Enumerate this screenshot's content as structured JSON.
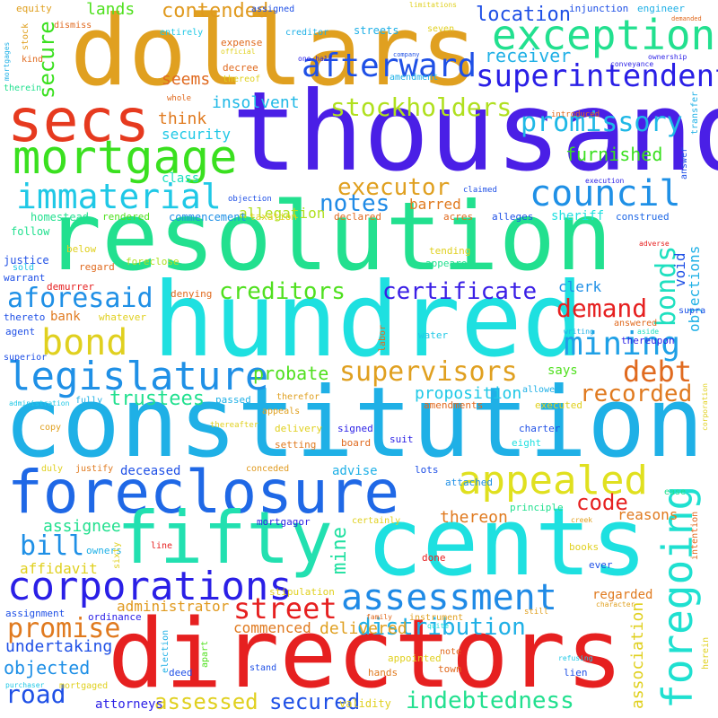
{
  "words": [
    {
      "text": "dollars",
      "color": "#e0a020"
    },
    {
      "text": "thousand",
      "color": "#4a1fe6"
    },
    {
      "text": "resolution",
      "color": "#22e08f"
    },
    {
      "text": "hundred",
      "color": "#1ee0e0"
    },
    {
      "text": "constitution",
      "color": "#1fb0e6"
    },
    {
      "text": "foreclosure",
      "color": "#1f68e6"
    },
    {
      "text": "cents",
      "color": "#1ee0e0"
    },
    {
      "text": "directors",
      "color": "#e62020"
    },
    {
      "text": "fifty",
      "color": "#22e0b0"
    },
    {
      "text": "secs",
      "color": "#e63a1f"
    },
    {
      "text": "mortgage",
      "color": "#3ae01f"
    },
    {
      "text": "exceptions",
      "color": "#22e08f"
    },
    {
      "text": "immaterial",
      "color": "#1fc8e6"
    },
    {
      "text": "council",
      "color": "#1f90e6"
    },
    {
      "text": "afterward",
      "color": "#1f50e6"
    },
    {
      "text": "superintendent",
      "color": "#2a1fe6"
    },
    {
      "text": "promissory",
      "color": "#1fb8e6"
    },
    {
      "text": "stockholders",
      "color": "#b0e01f"
    },
    {
      "text": "appealed",
      "color": "#e0e01f"
    },
    {
      "text": "corporations",
      "color": "#2a1fe6"
    },
    {
      "text": "assessment",
      "color": "#1f8ae6"
    },
    {
      "text": "legislature",
      "color": "#1f90e6"
    },
    {
      "text": "mining",
      "color": "#1fa0e6"
    },
    {
      "text": "bond",
      "color": "#e0d01f"
    },
    {
      "text": "aforesaid",
      "color": "#1f90e6"
    },
    {
      "text": "creditors",
      "color": "#50e01f"
    },
    {
      "text": "certificate",
      "color": "#3a1fe6"
    },
    {
      "text": "demand",
      "color": "#e62020"
    },
    {
      "text": "bonds",
      "color": "#1fe0c0"
    },
    {
      "text": "supervisors",
      "color": "#e0a020"
    },
    {
      "text": "debt",
      "color": "#e06a1f"
    },
    {
      "text": "recorded",
      "color": "#e07a1f"
    },
    {
      "text": "foregoing",
      "color": "#1fe0d0"
    },
    {
      "text": "executor",
      "color": "#e0a020"
    },
    {
      "text": "notes",
      "color": "#1f8ae6"
    },
    {
      "text": "location",
      "color": "#1f50e6"
    },
    {
      "text": "receiver",
      "color": "#1fb0e6"
    },
    {
      "text": "furnished",
      "color": "#3ae01f"
    },
    {
      "text": "contended",
      "color": "#e09a1f"
    },
    {
      "text": "seems",
      "color": "#e06a1f"
    },
    {
      "text": "lands",
      "color": "#50e01f"
    },
    {
      "text": "secure",
      "color": "#3ae01f"
    },
    {
      "text": "street",
      "color": "#e62020"
    },
    {
      "text": "promise",
      "color": "#e07a1f"
    },
    {
      "text": "road",
      "color": "#1f50e6"
    },
    {
      "text": "bill",
      "color": "#1f90e6"
    },
    {
      "text": "code",
      "color": "#e62020"
    },
    {
      "text": "mine",
      "color": "#1fe0a0"
    },
    {
      "text": "distribution",
      "color": "#1fb0e6"
    },
    {
      "text": "indebtedness",
      "color": "#22e08f"
    },
    {
      "text": "assessed",
      "color": "#e0d01f"
    },
    {
      "text": "secured",
      "color": "#1f50e6"
    },
    {
      "text": "trustees",
      "color": "#22e08f"
    },
    {
      "text": "probate",
      "color": "#50e01f"
    },
    {
      "text": "proposition",
      "color": "#1fc8e6"
    },
    {
      "text": "think",
      "color": "#e07a1f"
    },
    {
      "text": "insolvent",
      "color": "#1fb8e6"
    },
    {
      "text": "security",
      "color": "#1fc8e6"
    },
    {
      "text": "allegation",
      "color": "#b0e01f"
    },
    {
      "text": "thereon",
      "color": "#e07a1f"
    },
    {
      "text": "reasons",
      "color": "#e07a1f"
    },
    {
      "text": "assignee",
      "color": "#22e08f"
    },
    {
      "text": "affidavit",
      "color": "#e0d01f"
    },
    {
      "text": "objected",
      "color": "#1f90e6"
    },
    {
      "text": "undertaking",
      "color": "#1f50e6"
    },
    {
      "text": "administrator",
      "color": "#e09a1f"
    },
    {
      "text": "delivered",
      "color": "#e0a020"
    },
    {
      "text": "commenced",
      "color": "#e07a1f"
    },
    {
      "text": "attorneys",
      "color": "#2a1fe6"
    },
    {
      "text": "validity",
      "color": "#e0d01f"
    },
    {
      "text": "association",
      "color": "#e0d01f"
    },
    {
      "text": "regarded",
      "color": "#e07a1f"
    },
    {
      "text": "clerk",
      "color": "#1f90e6"
    },
    {
      "text": "objections",
      "color": "#1fb0e6"
    },
    {
      "text": "void",
      "color": "#1f50e6"
    },
    {
      "text": "barred",
      "color": "#e07a1f"
    },
    {
      "text": "sheriff",
      "color": "#1fe0e0"
    },
    {
      "text": "advise",
      "color": "#1fb0e6"
    },
    {
      "text": "deceased",
      "color": "#1f50e6"
    },
    {
      "text": "bank",
      "color": "#e07a1f"
    },
    {
      "text": "says",
      "color": "#50e01f"
    },
    {
      "text": "class",
      "color": "#1fe0c0"
    },
    {
      "text": "homestead",
      "color": "#22e08f"
    },
    {
      "text": "rendered",
      "color": "#50e01f"
    },
    {
      "text": "commencement",
      "color": "#1f90e6"
    },
    {
      "text": "taxation",
      "color": "#e0d01f"
    },
    {
      "text": "declared",
      "color": "#e06a1f"
    },
    {
      "text": "acres",
      "color": "#e06a1f"
    },
    {
      "text": "alleges",
      "color": "#1f50e6"
    },
    {
      "text": "construed",
      "color": "#1f68e6"
    },
    {
      "text": "follow",
      "color": "#22e08f"
    },
    {
      "text": "justice",
      "color": "#1f50e6"
    },
    {
      "text": "warrant",
      "color": "#1f50e6"
    },
    {
      "text": "sold",
      "color": "#1fc8e6"
    },
    {
      "text": "regard",
      "color": "#e06a1f"
    },
    {
      "text": "foreclose",
      "color": "#b0e01f"
    },
    {
      "text": "demurrer",
      "color": "#e62020"
    },
    {
      "text": "denying",
      "color": "#e06a1f"
    },
    {
      "text": "tending",
      "color": "#e0d01f"
    },
    {
      "text": "appeared",
      "color": "#22e08f"
    },
    {
      "text": "attached",
      "color": "#1f90e6"
    },
    {
      "text": "alleges",
      "color": "#1f50e6"
    },
    {
      "text": "below",
      "color": "#e0d01f"
    },
    {
      "text": "thereto",
      "color": "#1f50e6"
    },
    {
      "text": "whatever",
      "color": "#e0d01f"
    },
    {
      "text": "agent",
      "color": "#1f50e6"
    },
    {
      "text": "superior",
      "color": "#1f50e6"
    },
    {
      "text": "fully",
      "color": "#1fb0e6"
    },
    {
      "text": "administration",
      "color": "#1fc8e6"
    },
    {
      "text": "copy",
      "color": "#e0a020"
    },
    {
      "text": "duly",
      "color": "#e0d01f"
    },
    {
      "text": "justify",
      "color": "#e07a1f"
    },
    {
      "text": "conceded",
      "color": "#e09a1f"
    },
    {
      "text": "setting",
      "color": "#e07a1f"
    },
    {
      "text": "delivery",
      "color": "#e0d01f"
    },
    {
      "text": "signed",
      "color": "#2a1fe6"
    },
    {
      "text": "board",
      "color": "#e06a1f"
    },
    {
      "text": "suit",
      "color": "#2a1fe6"
    },
    {
      "text": "charter",
      "color": "#1f50e6"
    },
    {
      "text": "eight",
      "color": "#1fe0e0"
    },
    {
      "text": "lots",
      "color": "#1f50e6"
    },
    {
      "text": "principle",
      "color": "#22e08f"
    },
    {
      "text": "mortgagor",
      "color": "#2a1fe6"
    },
    {
      "text": "certainly",
      "color": "#e0d01f"
    },
    {
      "text": "owners",
      "color": "#1fb0e6"
    },
    {
      "text": "sixty",
      "color": "#e0d01f"
    },
    {
      "text": "line",
      "color": "#e62020"
    },
    {
      "text": "stipulation",
      "color": "#e0d01f"
    },
    {
      "text": "done",
      "color": "#e62020"
    },
    {
      "text": "books",
      "color": "#e0d01f"
    },
    {
      "text": "ever",
      "color": "#1f50e6"
    },
    {
      "text": "assignment",
      "color": "#1f50e6"
    },
    {
      "text": "ordinance",
      "color": "#2a1fe6"
    },
    {
      "text": "election",
      "color": "#1fb0e6"
    },
    {
      "text": "apart",
      "color": "#50e01f"
    },
    {
      "text": "deed",
      "color": "#1f50e6"
    },
    {
      "text": "hands",
      "color": "#e07a1f"
    },
    {
      "text": "appointed",
      "color": "#e0d01f"
    },
    {
      "text": "town",
      "color": "#e06a1f"
    },
    {
      "text": "note",
      "color": "#e06a1f"
    },
    {
      "text": "stand",
      "color": "#1f50e6"
    },
    {
      "text": "mortgaged",
      "color": "#e0d01f"
    },
    {
      "text": "purchaser",
      "color": "#1fc8e6"
    },
    {
      "text": "family",
      "color": "#e06a1f"
    },
    {
      "text": "instrument",
      "color": "#e0a020"
    },
    {
      "text": "quite",
      "color": "#1fe0e0"
    },
    {
      "text": "character",
      "color": "#e0a020"
    },
    {
      "text": "refusing",
      "color": "#1fc8e6"
    },
    {
      "text": "lien",
      "color": "#1f50e6"
    },
    {
      "text": "herein",
      "color": "#e0d01f"
    },
    {
      "text": "still",
      "color": "#e0a020"
    },
    {
      "text": "intention",
      "color": "#e06a1f"
    },
    {
      "text": "creek",
      "color": "#e0a020"
    },
    {
      "text": "ease",
      "color": "#22e08f"
    },
    {
      "text": "adverse",
      "color": "#e62020"
    },
    {
      "text": "corporation",
      "color": "#e0d01f"
    },
    {
      "text": "answer",
      "color": "#1f50e6"
    },
    {
      "text": "transfer",
      "color": "#1fb0e6"
    },
    {
      "text": "answered",
      "color": "#e06a1f"
    },
    {
      "text": "aside",
      "color": "#1fe0c0"
    },
    {
      "text": "writing",
      "color": "#1fb0e6"
    },
    {
      "text": "thereupon",
      "color": "#2a1fe6"
    },
    {
      "text": "supra",
      "color": "#1f50e6"
    },
    {
      "text": "labor",
      "color": "#e06a1f"
    },
    {
      "text": "water",
      "color": "#1fc8e6"
    },
    {
      "text": "executed",
      "color": "#e0d01f"
    },
    {
      "text": "allowed",
      "color": "#1fb0e6"
    },
    {
      "text": "amendments",
      "color": "#e06a1f"
    },
    {
      "text": "appeals",
      "color": "#e0a020"
    },
    {
      "text": "therefor",
      "color": "#e0a020"
    },
    {
      "text": "passed",
      "color": "#1fb0e6"
    },
    {
      "text": "thereafter",
      "color": "#e0d01f"
    },
    {
      "text": "equity",
      "color": "#e0a020"
    },
    {
      "text": "dismiss",
      "color": "#e06a1f"
    },
    {
      "text": "stock",
      "color": "#e0a020"
    },
    {
      "text": "mortgages",
      "color": "#1fb0e6"
    },
    {
      "text": "kind",
      "color": "#e06a1f"
    },
    {
      "text": "therein",
      "color": "#22e08f"
    },
    {
      "text": "entirely",
      "color": "#1fc8e6"
    },
    {
      "text": "creditor",
      "color": "#1fb0e6"
    },
    {
      "text": "streets",
      "color": "#1fb0e6"
    },
    {
      "text": "assigned",
      "color": "#1f50e6"
    },
    {
      "text": "limitations",
      "color": "#e0d01f"
    },
    {
      "text": "seven",
      "color": "#e0d01f"
    },
    {
      "text": "injunction",
      "color": "#1f50e6"
    },
    {
      "text": "engineer",
      "color": "#1fb0e6"
    },
    {
      "text": "demanded",
      "color": "#e06a1f"
    },
    {
      "text": "ownership",
      "color": "#2a1fe6"
    },
    {
      "text": "conveyance",
      "color": "#2a1fe6"
    },
    {
      "text": "company",
      "color": "#1f50e6"
    },
    {
      "text": "one-half",
      "color": "#2a1fe6"
    },
    {
      "text": "official",
      "color": "#e0d01f"
    },
    {
      "text": "expense",
      "color": "#e06a1f"
    },
    {
      "text": "decree",
      "color": "#e06a1f"
    },
    {
      "text": "thereof",
      "color": "#e0d01f"
    },
    {
      "text": "amendment",
      "color": "#1fb0e6"
    },
    {
      "text": "whole",
      "color": "#e06a1f"
    },
    {
      "text": "introduced",
      "color": "#e06a1f"
    },
    {
      "text": "execution",
      "color": "#2a1fe6"
    },
    {
      "text": "claimed",
      "color": "#1f50e6"
    },
    {
      "text": "objection",
      "color": "#1f50e6"
    }
  ]
}
